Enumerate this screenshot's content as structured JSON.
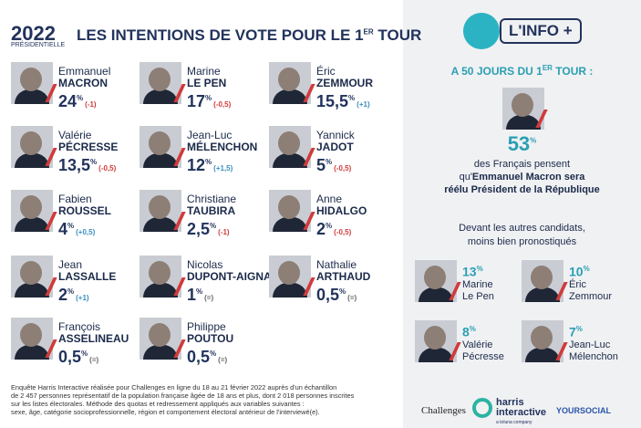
{
  "header": {
    "logo_year": "2022",
    "logo_sub": "PRÉSIDENTIELLE",
    "title": "LES INTENTIONS DE VOTE POUR LE 1",
    "title_sup": "ER",
    "title_end": " TOUR"
  },
  "candidates": [
    {
      "first": "Emmanuel",
      "last": "MACRON",
      "value": "24",
      "unit": "%",
      "change": "(-1)"
    },
    {
      "first": "Marine",
      "last": "LE PEN",
      "value": "17",
      "unit": "%",
      "change": "(-0,5)"
    },
    {
      "first": "Éric",
      "last": "ZEMMOUR",
      "value": "15,5",
      "unit": "%",
      "change": "(+1)"
    },
    {
      "first": "Valérie",
      "last": "PÉCRESSE",
      "value": "13,5",
      "unit": "%",
      "change": "(-0,5)"
    },
    {
      "first": "Jean-Luc",
      "last": "MÉLENCHON",
      "value": "12",
      "unit": "%",
      "change": "(+1,5)"
    },
    {
      "first": "Yannick",
      "last": "JADOT",
      "value": "5",
      "unit": "%",
      "change": "(-0,5)"
    },
    {
      "first": "Fabien",
      "last": "ROUSSEL",
      "value": "4",
      "unit": "%",
      "change": "(+0,5)"
    },
    {
      "first": "Christiane",
      "last": "TAUBIRA",
      "value": "2,5",
      "unit": "%",
      "change": "(-1)"
    },
    {
      "first": "Anne",
      "last": "HIDALGO",
      "value": "2",
      "unit": "%",
      "change": "(-0,5)"
    },
    {
      "first": "Jean",
      "last": "LASSALLE",
      "value": "2",
      "unit": "%",
      "change": "(+1)"
    },
    {
      "first": "Nicolas",
      "last": "DUPONT-AIGNAN",
      "value": "1",
      "unit": "%",
      "change": "(=)"
    },
    {
      "first": "Nathalie",
      "last": "ARTHAUD",
      "value": "0,5",
      "unit": "%",
      "change": "(=)"
    },
    {
      "first": "François",
      "last": "ASSELINEAU",
      "value": "0,5",
      "unit": "%",
      "change": "(=)"
    },
    {
      "first": "Philippe",
      "last": "POUTOU",
      "value": "0,5",
      "unit": "%",
      "change": "(=)"
    }
  ],
  "info": {
    "badge": "L'INFO +",
    "subtitle": "A 50 JOURS DU 1",
    "subtitle_sup": "ER",
    "subtitle_end": " TOUR :",
    "big_value": "53",
    "big_unit": "%",
    "line1": "des Français pensent",
    "line2_a": "qu'",
    "line2_b": "Emmanuel Macron sera",
    "line3": "réélu Président de la République",
    "others_title1": "Devant les autres candidats,",
    "others_title2": "moins bien pronostiqués",
    "others": [
      {
        "value": "13",
        "unit": "%",
        "name1": "Marine",
        "name2": "Le Pen"
      },
      {
        "value": "10",
        "unit": "%",
        "name1": "Éric",
        "name2": "Zemmour"
      },
      {
        "value": "8",
        "unit": "%",
        "name1": "Valérie",
        "name2": "Pécresse"
      },
      {
        "value": "7",
        "unit": "%",
        "name1": "Jean-Luc",
        "name2": "Mélenchon"
      }
    ]
  },
  "footer": {
    "lines": [
      "Enquête Harris Interactive réalisée pour Challenges en ligne du 18 au 21 février 2022 auprès d'un échantillon",
      "de 2 457 personnes  représentatif de la population française âgée de 18 ans et plus, dont 2 018 personnes inscrites",
      "sur les listes électorales. Méthode des quotas et redressement appliqués aux variables suivantes :",
      "sexe, âge, catégorie socioprofessionnelle, région et comportement électoral antérieur de l'interviewé(e)."
    ],
    "logo1": "Challenges",
    "logo2a": "harris",
    "logo2b": "interactive",
    "logo2c": "a toluna company",
    "logo3": "YOURSOCIAL"
  }
}
